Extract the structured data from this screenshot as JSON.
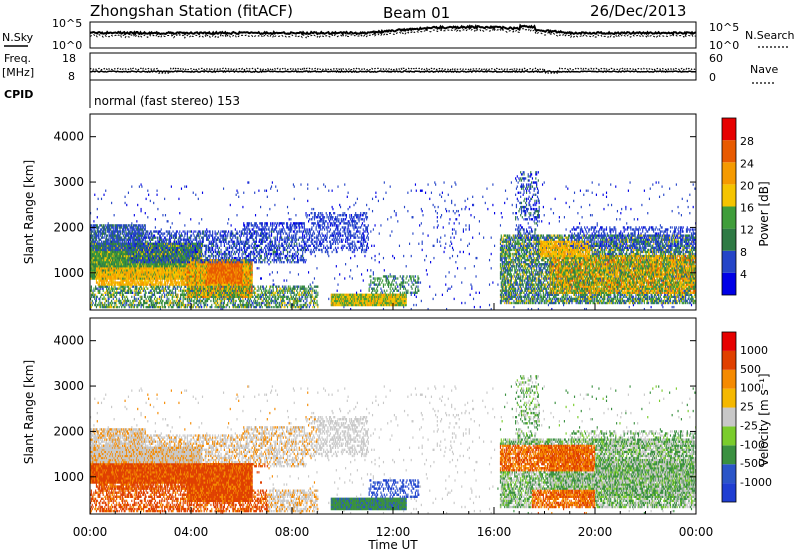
{
  "header": {
    "station": "Zhongshan Station (fitACF)",
    "beam": "Beam 01",
    "date": "26/Dec/2013"
  },
  "noise_panel": {
    "left_label": "N.Sky",
    "right_label": "N.Search",
    "left_ticks": [
      "10^5",
      "10^0"
    ],
    "right_ticks": [
      "10^5",
      "10^0"
    ]
  },
  "freq_panel": {
    "left_label_top": "Freq.",
    "left_label_unit": "[MHz]",
    "left_ticks": [
      "18",
      "8"
    ],
    "right_label": "Nave",
    "right_ticks": [
      "60",
      "0"
    ]
  },
  "cpid": {
    "label": "CPID",
    "text": "normal (fast stereo) 153"
  },
  "colors": {
    "power": [
      "#0000e6",
      "#2545c8",
      "#2e7a44",
      "#3f9d3a",
      "#f5c400",
      "#f59a00",
      "#e85a00",
      "#e60000"
    ],
    "velocity": [
      "#e60000",
      "#e04000",
      "#f58a00",
      "#f5b800",
      "#c8c8c8",
      "#7acc2c",
      "#3a9040",
      "#2b55c8",
      "#1f3ed2"
    ]
  },
  "chart_data": [
    {
      "type": "heatmap",
      "name": "power",
      "ylabel": "Slant Range [km]",
      "xlim": [
        0,
        24
      ],
      "ylim": [
        180,
        4500
      ],
      "y_ticks": [
        "1000",
        "2000",
        "3000",
        "4000"
      ],
      "y_tick_values": [
        1000,
        2000,
        3000,
        4000
      ],
      "colorbar_label": "Power [dB]",
      "colorbar_ticks": [
        "4",
        "8",
        "12",
        "16",
        "20",
        "24",
        "28"
      ]
    },
    {
      "type": "heatmap",
      "name": "velocity",
      "ylabel": "Slant Range [km]",
      "xlabel": "Time UT",
      "xlim": [
        0,
        24
      ],
      "ylim": [
        180,
        4500
      ],
      "x_ticks": [
        "00:00",
        "04:00",
        "08:00",
        "12:00",
        "16:00",
        "20:00",
        "00:00"
      ],
      "x_tick_values": [
        0,
        4,
        8,
        12,
        16,
        20,
        24
      ],
      "y_ticks": [
        "1000",
        "2000",
        "3000",
        "4000"
      ],
      "y_tick_values": [
        1000,
        2000,
        3000,
        4000
      ],
      "colorbar_label": "Velocity [m s⁻¹]",
      "colorbar_ticks": [
        "1000",
        "500",
        "100",
        "25",
        "-25",
        "-100",
        "-500",
        "-1000"
      ]
    }
  ]
}
